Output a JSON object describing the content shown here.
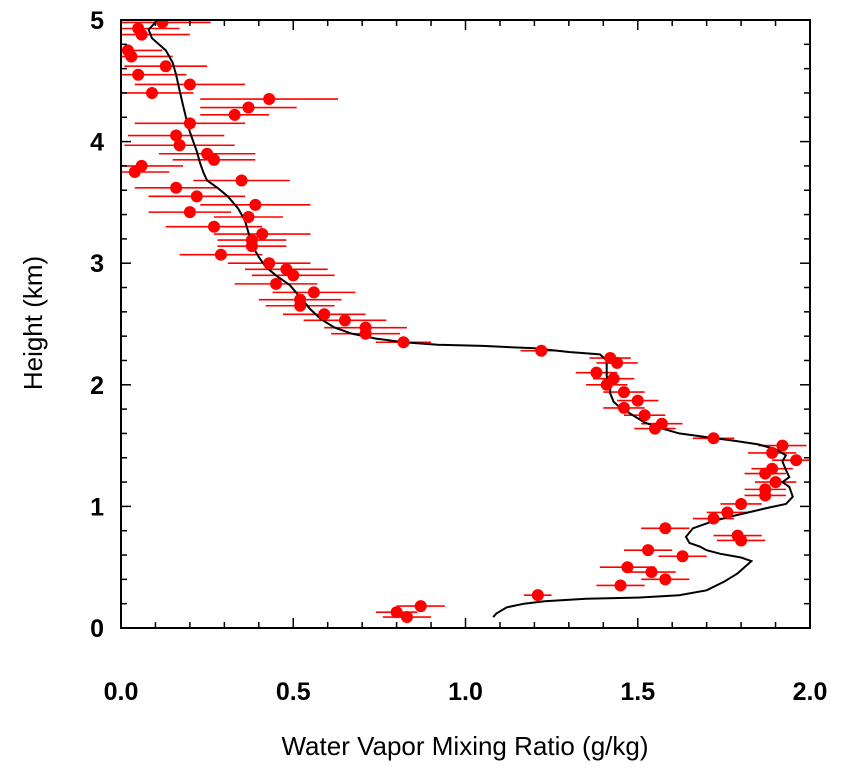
{
  "chart_data": {
    "type": "scatter",
    "title": "",
    "xlabel": "Water Vapor Mixing Ratio (g/kg)",
    "ylabel": "Height (km)",
    "xlim": [
      0.0,
      2.0
    ],
    "ylim": [
      0.0,
      5.0
    ],
    "x_ticks": [
      "0.0",
      "0.5",
      "1.0",
      "1.5",
      "2.0"
    ],
    "y_ticks": [
      "0",
      "1",
      "2",
      "3",
      "4",
      "5"
    ],
    "grid": false,
    "colors": {
      "points": "#ff0000",
      "line": "#000000",
      "axes": "#000000"
    },
    "series": [
      {
        "type": "line",
        "points": [
          [
            1.08,
            0.09
          ],
          [
            1.09,
            0.12
          ],
          [
            1.12,
            0.17
          ],
          [
            1.17,
            0.2
          ],
          [
            1.23,
            0.22
          ],
          [
            1.35,
            0.24
          ],
          [
            1.5,
            0.25
          ],
          [
            1.62,
            0.27
          ],
          [
            1.7,
            0.31
          ],
          [
            1.75,
            0.38
          ],
          [
            1.79,
            0.45
          ],
          [
            1.81,
            0.5
          ],
          [
            1.83,
            0.55
          ],
          [
            1.8,
            0.58
          ],
          [
            1.74,
            0.61
          ],
          [
            1.7,
            0.64
          ],
          [
            1.68,
            0.67
          ],
          [
            1.65,
            0.7
          ],
          [
            1.64,
            0.75
          ],
          [
            1.66,
            0.82
          ],
          [
            1.71,
            0.87
          ],
          [
            1.76,
            0.91
          ],
          [
            1.82,
            0.95
          ],
          [
            1.88,
            0.99
          ],
          [
            1.93,
            1.02
          ],
          [
            1.95,
            1.08
          ],
          [
            1.94,
            1.16
          ],
          [
            1.92,
            1.2
          ],
          [
            1.94,
            1.24
          ],
          [
            1.93,
            1.3
          ],
          [
            1.92,
            1.37
          ],
          [
            1.93,
            1.42
          ],
          [
            1.9,
            1.47
          ],
          [
            1.85,
            1.51
          ],
          [
            1.78,
            1.54
          ],
          [
            1.7,
            1.57
          ],
          [
            1.62,
            1.6
          ],
          [
            1.56,
            1.65
          ],
          [
            1.52,
            1.69
          ],
          [
            1.48,
            1.76
          ],
          [
            1.45,
            1.81
          ],
          [
            1.43,
            1.86
          ],
          [
            1.42,
            1.93
          ],
          [
            1.42,
            2.0
          ],
          [
            1.41,
            2.07
          ],
          [
            1.41,
            2.14
          ],
          [
            1.41,
            2.2
          ],
          [
            1.39,
            2.25
          ],
          [
            1.3,
            2.27
          ],
          [
            1.2,
            2.3
          ],
          [
            1.05,
            2.32
          ],
          [
            0.92,
            2.33
          ],
          [
            0.82,
            2.35
          ],
          [
            0.74,
            2.38
          ],
          [
            0.67,
            2.42
          ],
          [
            0.62,
            2.47
          ],
          [
            0.58,
            2.54
          ],
          [
            0.55,
            2.62
          ],
          [
            0.52,
            2.72
          ],
          [
            0.49,
            2.82
          ],
          [
            0.45,
            2.9
          ],
          [
            0.42,
            2.97
          ],
          [
            0.4,
            3.05
          ],
          [
            0.38,
            3.15
          ],
          [
            0.37,
            3.25
          ],
          [
            0.36,
            3.35
          ],
          [
            0.34,
            3.45
          ],
          [
            0.31,
            3.55
          ],
          [
            0.28,
            3.62
          ],
          [
            0.25,
            3.68
          ],
          [
            0.24,
            3.74
          ],
          [
            0.23,
            3.82
          ],
          [
            0.22,
            3.92
          ],
          [
            0.21,
            4.0
          ],
          [
            0.2,
            4.08
          ],
          [
            0.19,
            4.18
          ],
          [
            0.18,
            4.3
          ],
          [
            0.17,
            4.42
          ],
          [
            0.16,
            4.55
          ],
          [
            0.15,
            4.65
          ],
          [
            0.13,
            4.75
          ],
          [
            0.09,
            4.85
          ],
          [
            0.08,
            4.92
          ],
          [
            0.1,
            4.98
          ],
          [
            0.12,
            5.05
          ]
        ]
      },
      {
        "type": "scatter",
        "points": [
          [
            0.17,
            5.05,
            0.16
          ],
          [
            0.12,
            4.98,
            0.14
          ],
          [
            0.05,
            4.93,
            0.12
          ],
          [
            0.06,
            4.88,
            0.14
          ],
          [
            0.02,
            4.75,
            0.1
          ],
          [
            0.03,
            4.7,
            0.12
          ],
          [
            0.13,
            4.62,
            0.12
          ],
          [
            0.05,
            4.55,
            0.14
          ],
          [
            0.2,
            4.47,
            0.16
          ],
          [
            0.09,
            4.4,
            0.12
          ],
          [
            0.43,
            4.35,
            0.2
          ],
          [
            0.37,
            4.28,
            0.14
          ],
          [
            0.33,
            4.22,
            0.1
          ],
          [
            0.2,
            4.15,
            0.16
          ],
          [
            0.16,
            4.05,
            0.14
          ],
          [
            0.17,
            3.97,
            0.16
          ],
          [
            0.25,
            3.9,
            0.14
          ],
          [
            0.27,
            3.85,
            0.12
          ],
          [
            0.06,
            3.8,
            0.12
          ],
          [
            0.04,
            3.75,
            0.1
          ],
          [
            0.35,
            3.68,
            0.14
          ],
          [
            0.16,
            3.62,
            0.12
          ],
          [
            0.22,
            3.55,
            0.14
          ],
          [
            0.39,
            3.48,
            0.16
          ],
          [
            0.2,
            3.42,
            0.12
          ],
          [
            0.37,
            3.38,
            0.1
          ],
          [
            0.27,
            3.3,
            0.14
          ],
          [
            0.41,
            3.24,
            0.14
          ],
          [
            0.38,
            3.19,
            0.1
          ],
          [
            0.38,
            3.14,
            0.1
          ],
          [
            0.29,
            3.07,
            0.12
          ],
          [
            0.43,
            3.0,
            0.12
          ],
          [
            0.48,
            2.95,
            0.12
          ],
          [
            0.5,
            2.9,
            0.12
          ],
          [
            0.45,
            2.83,
            0.12
          ],
          [
            0.56,
            2.76,
            0.12
          ],
          [
            0.52,
            2.7,
            0.12
          ],
          [
            0.52,
            2.65,
            0.1
          ],
          [
            0.59,
            2.58,
            0.12
          ],
          [
            0.65,
            2.53,
            0.12
          ],
          [
            0.71,
            2.47,
            0.12
          ],
          [
            0.71,
            2.42,
            0.1
          ],
          [
            0.82,
            2.35,
            0.08
          ],
          [
            1.22,
            2.28,
            0.06
          ],
          [
            1.42,
            2.22,
            0.06
          ],
          [
            1.44,
            2.18,
            0.06
          ],
          [
            1.38,
            2.1,
            0.06
          ],
          [
            1.43,
            2.05,
            0.06
          ],
          [
            1.41,
            2.0,
            0.06
          ],
          [
            1.46,
            1.94,
            0.06
          ],
          [
            1.5,
            1.87,
            0.06
          ],
          [
            1.46,
            1.81,
            0.06
          ],
          [
            1.52,
            1.75,
            0.06
          ],
          [
            1.57,
            1.68,
            0.06
          ],
          [
            1.55,
            1.64,
            0.06
          ],
          [
            1.72,
            1.56,
            0.06
          ],
          [
            1.92,
            1.5,
            0.07
          ],
          [
            1.89,
            1.44,
            0.07
          ],
          [
            1.96,
            1.38,
            0.07
          ],
          [
            1.89,
            1.31,
            0.06
          ],
          [
            1.87,
            1.27,
            0.06
          ],
          [
            1.9,
            1.2,
            0.06
          ],
          [
            1.87,
            1.14,
            0.06
          ],
          [
            1.87,
            1.09,
            0.06
          ],
          [
            1.8,
            1.02,
            0.06
          ],
          [
            1.76,
            0.95,
            0.06
          ],
          [
            1.72,
            0.9,
            0.06
          ],
          [
            1.58,
            0.82,
            0.07
          ],
          [
            1.79,
            0.76,
            0.07
          ],
          [
            1.8,
            0.72,
            0.07
          ],
          [
            1.53,
            0.64,
            0.07
          ],
          [
            1.63,
            0.59,
            0.07
          ],
          [
            1.47,
            0.5,
            0.08
          ],
          [
            1.54,
            0.46,
            0.07
          ],
          [
            1.58,
            0.4,
            0.07
          ],
          [
            1.45,
            0.35,
            0.07
          ],
          [
            1.21,
            0.27,
            0.04
          ],
          [
            0.87,
            0.18,
            0.07
          ],
          [
            0.8,
            0.13,
            0.06
          ],
          [
            0.83,
            0.09,
            0.07
          ]
        ]
      }
    ]
  }
}
